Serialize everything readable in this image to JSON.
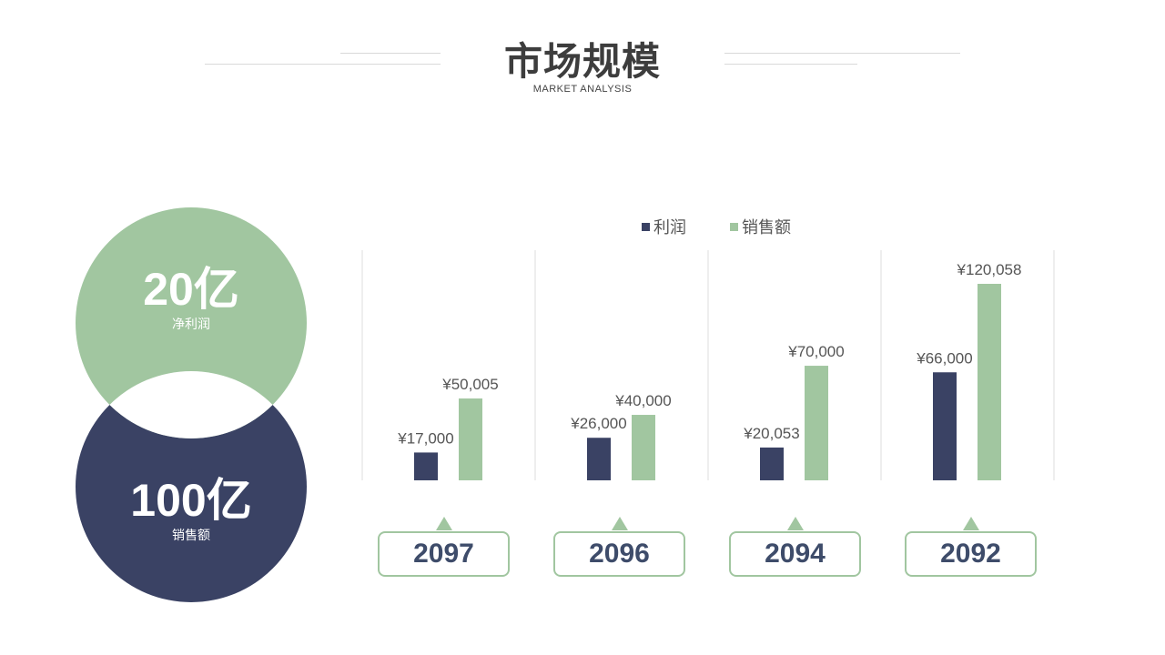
{
  "header": {
    "title": "市场规模",
    "subtitle": "MARKET ANALYSIS"
  },
  "summary": {
    "profit_value": "20亿",
    "profit_label": "净利润",
    "sales_value": "100亿",
    "sales_label": "销售额"
  },
  "colors": {
    "profit": "#3a4264",
    "sales": "#a1c6a0",
    "title": "#3d3d3d",
    "year_text": "#3e4c6a"
  },
  "chart_data": {
    "type": "bar",
    "categories": [
      "2097",
      "2096",
      "2094",
      "2092"
    ],
    "series": [
      {
        "name": "利润",
        "values": [
          17000,
          26000,
          20053,
          66000
        ],
        "labels": [
          "¥17,000",
          "¥26,000",
          "¥20,053",
          "¥66,000"
        ]
      },
      {
        "name": "销售额",
        "values": [
          50005,
          40000,
          70000,
          120058
        ],
        "labels": [
          "¥50,005",
          "¥40,000",
          "¥70,000",
          "¥120,058"
        ]
      }
    ],
    "legend_position": "top",
    "grid": false
  }
}
